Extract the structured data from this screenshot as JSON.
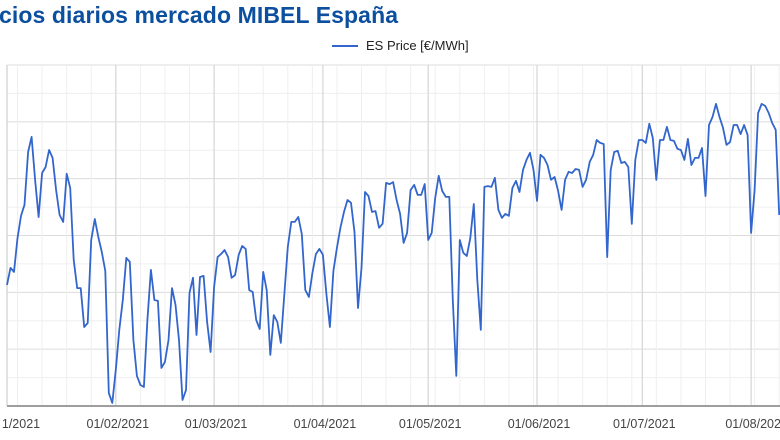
{
  "title": "cios diarios mercado MIBEL España",
  "chart_data": {
    "type": "line",
    "title": "cios diarios mercado MIBEL España",
    "xlabel": "",
    "ylabel": "",
    "ylim": [
      0,
      120
    ],
    "y_tick_labels_visible": false,
    "grid": true,
    "legend": {
      "position": "top-center",
      "entries": [
        "ES Price [€/MWh]"
      ]
    },
    "colors": {
      "series": "#3366cc",
      "title": "#0d4f9f"
    },
    "x_tick_labels": [
      {
        "date": "2021-01-01",
        "label": "1/2021"
      },
      {
        "date": "2021-02-01",
        "label": "01/02/2021"
      },
      {
        "date": "2021-03-01",
        "label": "01/03/2021"
      },
      {
        "date": "2021-04-01",
        "label": "01/04/2021"
      },
      {
        "date": "2021-05-01",
        "label": "01/05/2021"
      },
      {
        "date": "2021-06-01",
        "label": "01/06/2021"
      },
      {
        "date": "2021-07-01",
        "label": "01/07/2021"
      },
      {
        "date": "2021-08-01",
        "label": "01/08/202"
      }
    ],
    "series": [
      {
        "name": "ES Price [€/MWh]",
        "daily_values_by_month": [
          {
            "month": "2021-01",
            "values": [
              42.6,
              48.6,
              47.2,
              59.1,
              66.9,
              70.8,
              89.4,
              94.7,
              79.6,
              66.5,
              82.0,
              84.1,
              90.1,
              87.3,
              76.0,
              67.2,
              64.8,
              81.7,
              76.7,
              51.4,
              41.5,
              41.5,
              27.8,
              29.2,
              58.4,
              65.8,
              59.5,
              54.2,
              47.5,
              4.6,
              1.1
            ]
          },
          {
            "month": "2021-02",
            "values": [
              12.7,
              26.8,
              37.3,
              52.1,
              50.7,
              23.2,
              10.6,
              7.4,
              6.7,
              30.3,
              47.9,
              37.3,
              37.0,
              13.4,
              15.5,
              23.2,
              41.5,
              35.6,
              23.2,
              2.1,
              5.6,
              39.8,
              45.1,
              25.0,
              45.4,
              45.8,
              29.6,
              19.0
            ]
          },
          {
            "month": "2021-03",
            "values": [
              41.9,
              52.4,
              53.5,
              54.9,
              52.4,
              45.1,
              46.1,
              53.2,
              56.3,
              55.3,
              40.8,
              40.1,
              30.3,
              27.1,
              47.2,
              40.8,
              18.0,
              32.0,
              29.6,
              22.2,
              39.1,
              56.0,
              64.8,
              64.8,
              66.5,
              60.5,
              40.8,
              38.4,
              46.8,
              53.5,
              55.3
            ]
          },
          {
            "month": "2021-04",
            "values": [
              53.2,
              39.4,
              27.8,
              47.5,
              55.6,
              62.7,
              68.3,
              72.5,
              71.5,
              61.2,
              34.5,
              48.6,
              75.3,
              73.9,
              68.3,
              68.6,
              62.7,
              64.1,
              78.5,
              78.1,
              78.8,
              72.5,
              67.6,
              57.4,
              60.9,
              76.0,
              77.8,
              74.3,
              74.3,
              78.1
            ]
          },
          {
            "month": "2021-05",
            "values": [
              58.4,
              60.9,
              73.2,
              81.0,
              75.7,
              73.6,
              73.6,
              37.3,
              10.6,
              58.4,
              53.9,
              52.8,
              59.1,
              71.1,
              44.4,
              26.8,
              77.1,
              77.4,
              77.1,
              80.3,
              69.0,
              66.2,
              67.6,
              66.9,
              76.7,
              79.2,
              75.3,
              83.1,
              86.6,
              89.1,
              83.1
            ]
          },
          {
            "month": "2021-06",
            "values": [
              72.2,
              88.4,
              87.3,
              84.8,
              79.6,
              80.6,
              75.7,
              69.0,
              79.6,
              82.4,
              82.0,
              83.4,
              83.1,
              77.1,
              79.6,
              85.9,
              88.4,
              93.6,
              92.6,
              92.2,
              52.4,
              83.1,
              89.4,
              89.8,
              85.5,
              85.9,
              84.1,
              64.1,
              86.6,
              93.6
            ]
          },
          {
            "month": "2021-07",
            "values": [
              93.6,
              92.6,
              99.3,
              94.3,
              79.6,
              93.6,
              93.6,
              98.2,
              93.6,
              93.3,
              90.5,
              90.1,
              86.6,
              94.0,
              84.8,
              87.3,
              87.3,
              90.8,
              73.9,
              98.9,
              101.7,
              106.3,
              101.7,
              97.9,
              91.9,
              92.9,
              98.9,
              98.9,
              95.7,
              98.9,
              95.4
            ]
          },
          {
            "month": "2021-08",
            "values": [
              60.9,
              76.0,
              103.1,
              106.3,
              105.6,
              103.1,
              99.6,
              97.2,
              67.2
            ]
          }
        ]
      }
    ]
  }
}
